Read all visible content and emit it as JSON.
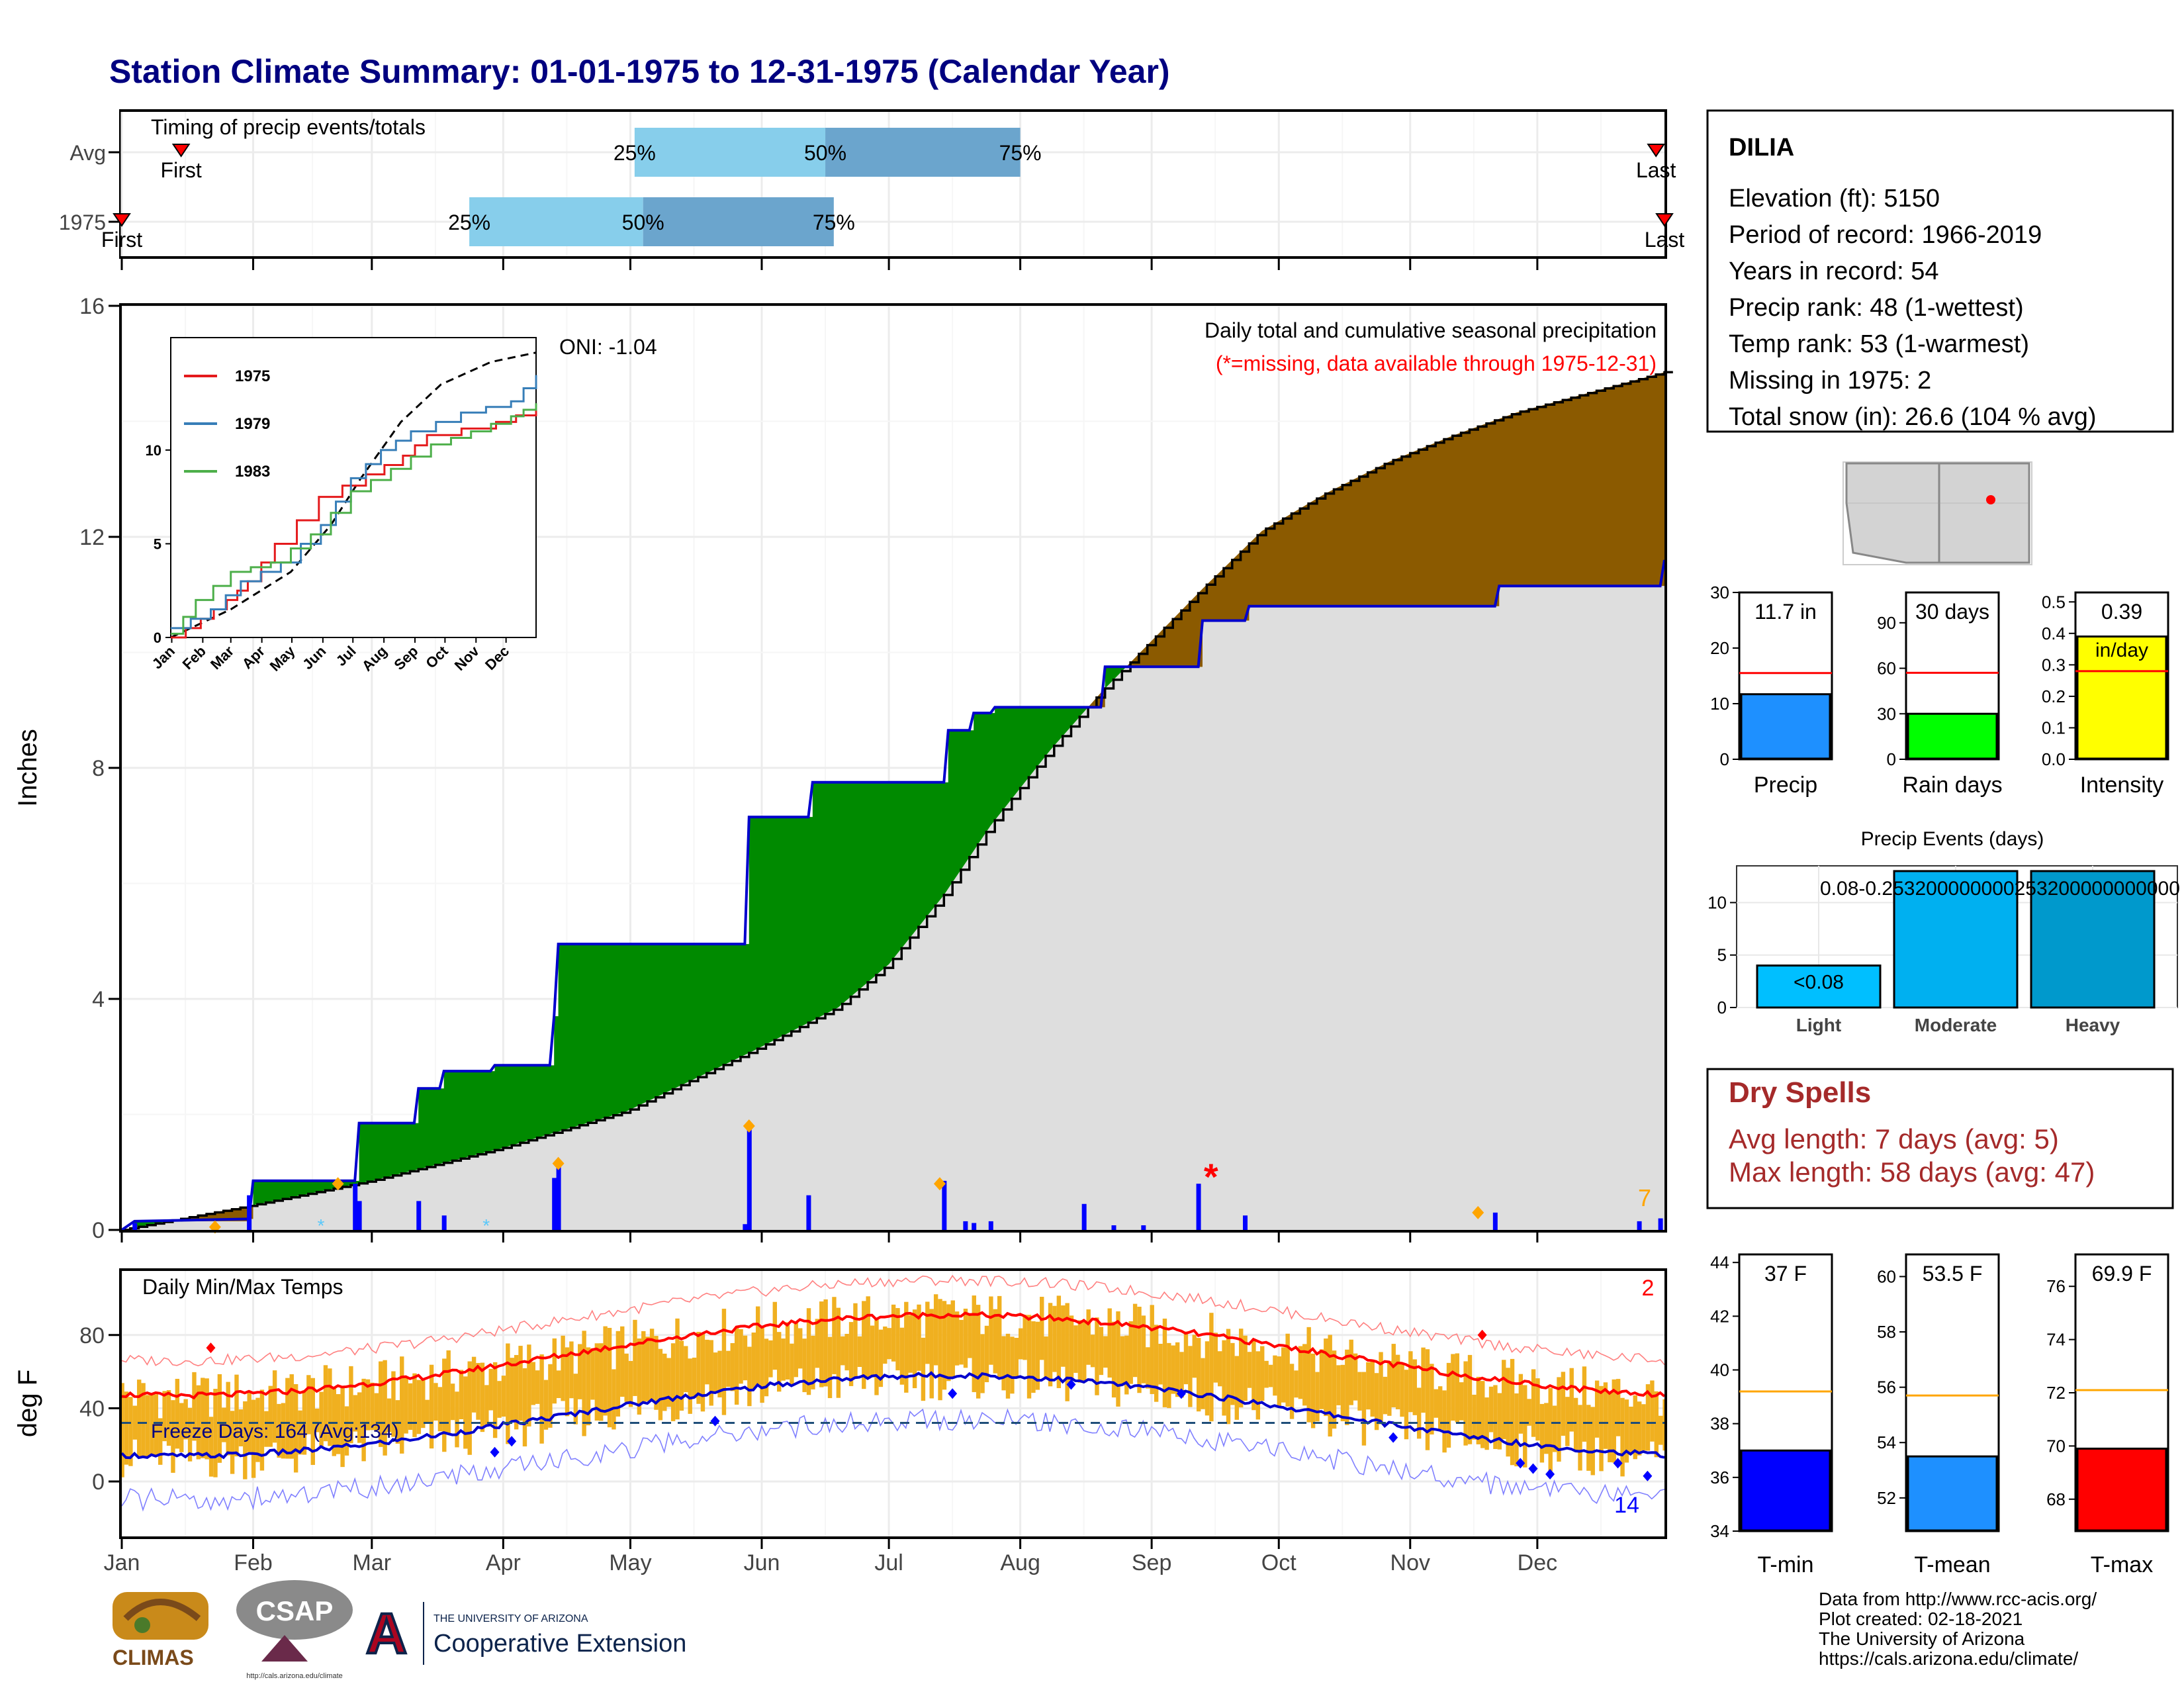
{
  "title": "Station Climate Summary: 01-01-1975 to 12-31-1975 (Calendar Year)",
  "timing": {
    "label": "Timing of precip events/totals",
    "rows": [
      {
        "name": "Avg",
        "first_doy": 15,
        "last_doy": 363,
        "p25": 122,
        "p50": 167,
        "p75": 213,
        "first_label": "First",
        "last_label": "Last"
      },
      {
        "name": "1975",
        "first_doy": 1,
        "last_doy": 365,
        "p25": 83,
        "p50": 124,
        "p75": 169,
        "first_label": "First",
        "last_label": "Last"
      }
    ],
    "pct_labels": [
      "25%",
      "50%",
      "75%"
    ]
  },
  "precip": {
    "ylabel": "Inches",
    "yticks": [
      0,
      4,
      8,
      12,
      16
    ],
    "ylim": [
      0,
      16
    ],
    "title": "Daily total and cumulative seasonal precipitation",
    "missing_note": "(*=missing, data available through 1975-12-31)",
    "oni": "ONI: -1.04",
    "count_label": "7",
    "cum_obs": [
      [
        1,
        0
      ],
      [
        4,
        0.15
      ],
      [
        31,
        0.19
      ],
      [
        32,
        0.85
      ],
      [
        56,
        0.85
      ],
      [
        57,
        1.85
      ],
      [
        70,
        1.85
      ],
      [
        71,
        2.45
      ],
      [
        76,
        2.45
      ],
      [
        77,
        2.75
      ],
      [
        88,
        2.75
      ],
      [
        89,
        2.85
      ],
      [
        102,
        2.85
      ],
      [
        103,
        3.7
      ],
      [
        104,
        4.95
      ],
      [
        148,
        4.95
      ],
      [
        149,
        7.15
      ],
      [
        163,
        7.15
      ],
      [
        164,
        7.75
      ],
      [
        195,
        7.75
      ],
      [
        196,
        8.65
      ],
      [
        201,
        8.65
      ],
      [
        202,
        8.95
      ],
      [
        206,
        8.95
      ],
      [
        207,
        9.05
      ],
      [
        232,
        9.05
      ],
      [
        233,
        9.75
      ],
      [
        255,
        9.75
      ],
      [
        256,
        10.55
      ],
      [
        266,
        10.55
      ],
      [
        267,
        10.8
      ],
      [
        325,
        10.8
      ],
      [
        326,
        11.15
      ],
      [
        364,
        11.15
      ],
      [
        365,
        11.6
      ]
    ],
    "cum_avg": [
      [
        1,
        0
      ],
      [
        30,
        0.4
      ],
      [
        60,
        0.85
      ],
      [
        90,
        1.4
      ],
      [
        120,
        2.05
      ],
      [
        150,
        3.1
      ],
      [
        170,
        3.85
      ],
      [
        182,
        4.6
      ],
      [
        195,
        5.8
      ],
      [
        206,
        7.0
      ],
      [
        220,
        8.3
      ],
      [
        232,
        9.3
      ],
      [
        244,
        10.2
      ],
      [
        256,
        11.1
      ],
      [
        270,
        12.1
      ],
      [
        285,
        12.75
      ],
      [
        300,
        13.3
      ],
      [
        315,
        13.75
      ],
      [
        330,
        14.15
      ],
      [
        345,
        14.45
      ],
      [
        365,
        14.85
      ]
    ],
    "daily": [
      [
        4,
        0.12
      ],
      [
        31,
        0.6
      ],
      [
        56,
        0.8
      ],
      [
        57,
        0.5
      ],
      [
        71,
        0.5
      ],
      [
        77,
        0.25
      ],
      [
        103,
        0.9
      ],
      [
        104,
        1.2
      ],
      [
        148,
        0.1
      ],
      [
        149,
        1.8
      ],
      [
        163,
        0.6
      ],
      [
        195,
        0.85
      ],
      [
        200,
        0.15
      ],
      [
        202,
        0.12
      ],
      [
        206,
        0.15
      ],
      [
        228,
        0.45
      ],
      [
        235,
        0.08
      ],
      [
        242,
        0.08
      ],
      [
        255,
        0.8
      ],
      [
        266,
        0.25
      ],
      [
        325,
        0.3
      ],
      [
        359,
        0.15
      ],
      [
        364,
        0.2
      ]
    ],
    "avg_markers": [
      [
        23,
        0.05
      ],
      [
        52,
        0.8
      ],
      [
        104,
        1.15
      ],
      [
        149,
        1.8
      ],
      [
        194,
        0.8
      ],
      [
        321,
        0.3
      ]
    ],
    "snow_markers": [
      [
        48,
        0.08
      ],
      [
        87,
        0.08
      ]
    ],
    "missing_marker": [
      258,
      0.95
    ],
    "legend": {
      "years": [
        "1975",
        "1979",
        "1983"
      ],
      "colors": [
        "#e41a1c",
        "#377eb8",
        "#4daf4a"
      ]
    }
  },
  "inset": {
    "yticks": [
      0,
      5,
      10
    ],
    "months": [
      "Jan",
      "Feb",
      "Mar",
      "Apr",
      "May",
      "Jun",
      "Jul",
      "Aug",
      "Sep",
      "Oct",
      "Nov",
      "Dec"
    ],
    "series": [
      {
        "name": "1975",
        "color": "#e41a1c",
        "points": [
          [
            0,
            0
          ],
          [
            30,
            1.0
          ],
          [
            56,
            2.0
          ],
          [
            77,
            3.0
          ],
          [
            104,
            5.0
          ],
          [
            148,
            7.5
          ],
          [
            195,
            8.7
          ],
          [
            232,
            9.7
          ],
          [
            256,
            10.8
          ],
          [
            325,
            11.5
          ],
          [
            365,
            12.2
          ]
        ]
      },
      {
        "name": "1979",
        "color": "#377eb8",
        "points": [
          [
            0,
            0.5
          ],
          [
            40,
            1.5
          ],
          [
            70,
            3.0
          ],
          [
            110,
            4.0
          ],
          [
            150,
            6.0
          ],
          [
            180,
            8.5
          ],
          [
            210,
            10.0
          ],
          [
            240,
            11.0
          ],
          [
            290,
            12.0
          ],
          [
            340,
            12.6
          ],
          [
            365,
            14.0
          ]
        ]
      },
      {
        "name": "1983",
        "color": "#4daf4a",
        "points": [
          [
            0,
            0.2
          ],
          [
            25,
            2.0
          ],
          [
            60,
            3.5
          ],
          [
            100,
            4.0
          ],
          [
            140,
            5.5
          ],
          [
            180,
            7.8
          ],
          [
            220,
            9.0
          ],
          [
            260,
            10.3
          ],
          [
            300,
            11.0
          ],
          [
            340,
            11.8
          ],
          [
            365,
            12.5
          ]
        ]
      }
    ],
    "avg_points": [
      [
        0,
        0
      ],
      [
        60,
        1.5
      ],
      [
        120,
        3.5
      ],
      [
        160,
        6.0
      ],
      [
        190,
        8.5
      ],
      [
        230,
        11.5
      ],
      [
        270,
        13.5
      ],
      [
        320,
        14.7
      ],
      [
        365,
        15.2
      ]
    ]
  },
  "temps": {
    "label": "Daily Min/Max Temps",
    "ylabel": "deg F",
    "yticks": [
      0,
      40,
      80
    ],
    "ylim": [
      -30,
      115
    ],
    "freeze_label": "Freeze Days: 164 (Avg:134)",
    "freeze_line": 32,
    "count_top": "2",
    "count_bottom": "14"
  },
  "months_axis": [
    "Jan",
    "Feb",
    "Mar",
    "Apr",
    "May",
    "Jun",
    "Jul",
    "Aug",
    "Sep",
    "Oct",
    "Nov",
    "Dec"
  ],
  "info": {
    "station": "DILIA",
    "lines": [
      "Elevation (ft): 5150",
      "Period of record: 1966-2019",
      "Years in record: 54",
      "Precip rank: 48 (1-wettest)",
      "Temp rank: 53 (1-warmest)",
      "Missing in 1975: 2",
      "Total snow (in): 26.6 (104 % avg)"
    ]
  },
  "mini_bars": [
    {
      "name": "Precip",
      "value": 11.7,
      "avg": 15.5,
      "ymax": 30,
      "yticks": [
        0,
        10,
        20,
        30
      ],
      "label": "11.7 in",
      "color": "#1e90ff"
    },
    {
      "name": "Rain days",
      "value": 30,
      "avg": 57,
      "ymax": 110,
      "yticks": [
        0,
        30,
        60,
        90
      ],
      "label": "30 days",
      "color": "#00ff00"
    },
    {
      "name": "Intensity",
      "value": 0.39,
      "avg": 0.28,
      "ymax": 0.53,
      "yticks": [
        0.0,
        0.1,
        0.2,
        0.3,
        0.4,
        0.5
      ],
      "label": "0.39",
      "sublabel": "in/day",
      "color": "#ffff00"
    }
  ],
  "events": {
    "title": "Precip Events (days)",
    "ymax": 13.5,
    "yticks": [
      0,
      5,
      10
    ],
    "cats": [
      {
        "name": "Light",
        "value": 4,
        "label": "<0.08",
        "color": "#00bfff"
      },
      {
        "name": "Moderate",
        "value": 13,
        "label": "0.08-0.253200000000",
        "color": "#00b0f0"
      },
      {
        "name": "Heavy",
        "value": 13,
        "label": "0.253200000000",
        "color": "#0099cc"
      }
    ],
    "overlap_label": "0.08-0.253200000000253200000000000"
  },
  "dry": {
    "title": "Dry Spells",
    "avg": "Avg length: 7 days (avg: 5)",
    "max": "Max length: 58 days (avg: 47)"
  },
  "temp_bars": [
    {
      "name": "T-min",
      "value": 37,
      "avg": 39.2,
      "ymin": 34,
      "ymax": 44.3,
      "yticks": [
        34,
        36,
        38,
        40,
        42,
        44
      ],
      "label": "37 F",
      "color": "#0000ff"
    },
    {
      "name": "T-mean",
      "value": 53.5,
      "avg": 55.7,
      "ymin": 50.8,
      "ymax": 60.8,
      "yticks": [
        52,
        54,
        56,
        58,
        60
      ],
      "label": "53.5 F",
      "color": "#1e90ff"
    },
    {
      "name": "T-max",
      "value": 69.9,
      "avg": 72.1,
      "ymin": 66.8,
      "ymax": 77.2,
      "yticks": [
        68,
        70,
        72,
        74,
        76
      ],
      "label": "69.9 F",
      "color": "#ff0000"
    }
  ],
  "footer": [
    "Data from http://www.rcc-acis.org/",
    "Plot created: 02-18-2021",
    "The University of Arizona",
    "https://cals.arizona.edu/climate/"
  ],
  "logos": {
    "climas": "CLIMAS",
    "csap": "CSAP",
    "csap_url": "http://cals.arizona.edu/climate",
    "ua_small": "THE UNIVERSITY OF ARIZONA",
    "ua_big": "Cooperative Extension"
  }
}
